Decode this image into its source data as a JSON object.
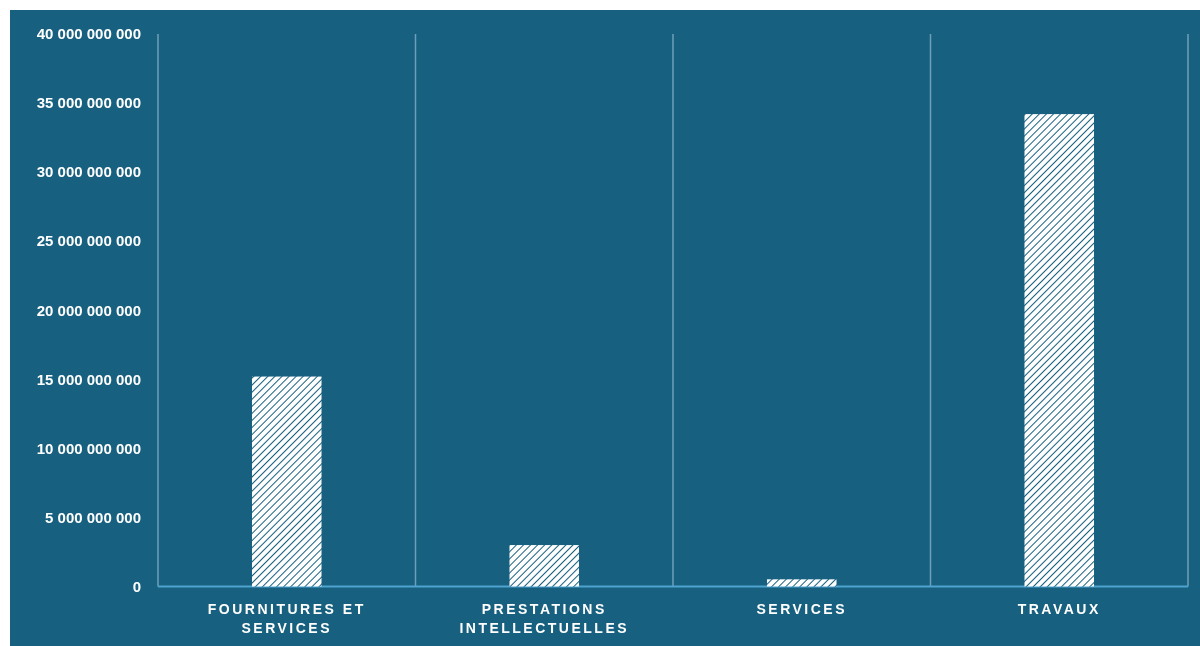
{
  "chart_data": {
    "type": "bar",
    "categories": [
      "FOURNITURES ET SERVICES",
      "PRESTATIONS INTELLECTUELLES",
      "SERVICES",
      "TRAVAUX"
    ],
    "values": [
      15200000000,
      3000000000,
      520000000,
      34200000000
    ],
    "color": "#ffffff",
    "ylim": [
      0,
      40000000000
    ],
    "yticks": [
      {
        "value": 0,
        "label": "0"
      },
      {
        "value": 5000000000,
        "label": "5 000 000 000"
      },
      {
        "value": 10000000000,
        "label": "10 000 000 000"
      },
      {
        "value": 15000000000,
        "label": "15 000 000 000"
      },
      {
        "value": 20000000000,
        "label": "20 000 000 000"
      },
      {
        "value": 25000000000,
        "label": "25 000 000 000"
      },
      {
        "value": 30000000000,
        "label": "30 000 000 000"
      },
      {
        "value": 35000000000,
        "label": "35 000 000 000"
      },
      {
        "value": 40000000000,
        "label": "40 000 000 000"
      }
    ]
  }
}
